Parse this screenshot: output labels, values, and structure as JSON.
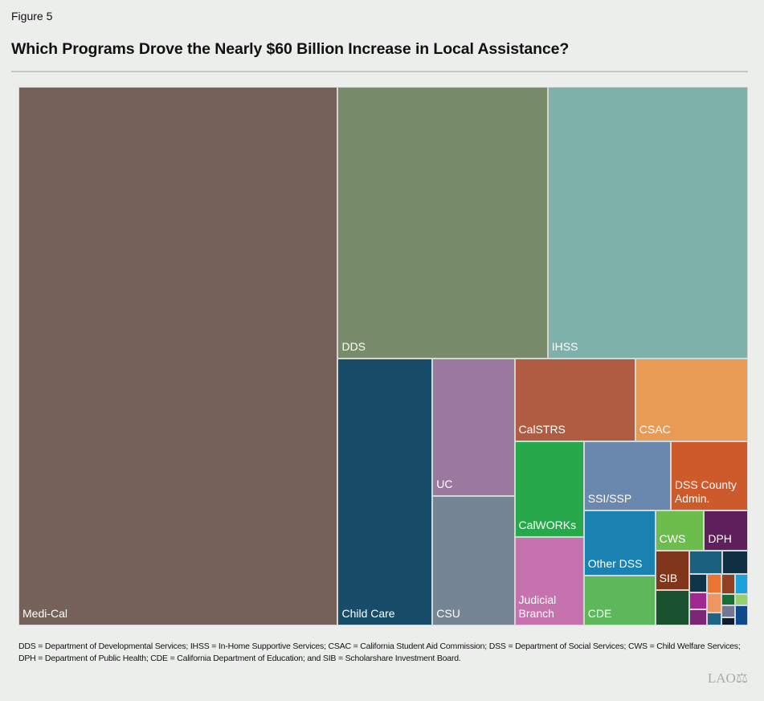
{
  "figure_label": "Figure 5",
  "title": "Which Programs Drove the Nearly $60 Billion Increase in Local Assistance?",
  "chart_data": {
    "type": "treemap",
    "title": "Which Programs Drove the Nearly $60 Billion Increase in Local Assistance?",
    "value_unit": "billions of dollars (estimated from area)",
    "items": [
      {
        "label": "Medi-Cal",
        "value": 25.9,
        "color": "#76615a"
      },
      {
        "label": "DDS",
        "value": 8.6,
        "color": "#788c6b"
      },
      {
        "label": "IHSS",
        "value": 8.2,
        "color": "#7db1a9"
      },
      {
        "label": "Child Care",
        "value": 3.8,
        "color": "#174d68"
      },
      {
        "label": "UC",
        "value": 1.7,
        "color": "#9b789e"
      },
      {
        "label": "CSU",
        "value": 1.6,
        "color": "#768593"
      },
      {
        "label": "CalSTRS",
        "value": 1.5,
        "color": "#b05c42"
      },
      {
        "label": "CSAC",
        "value": 1.4,
        "color": "#e89b55"
      },
      {
        "label": "CalWORKs",
        "value": 1.0,
        "color": "#27a84a"
      },
      {
        "label": "Judicial\nBranch",
        "value": 0.92,
        "color": "#c672ae"
      },
      {
        "label": "SSI/SSP",
        "value": 0.9,
        "color": "#6a87ad"
      },
      {
        "label": "DSS County\nAdmin.",
        "value": 0.8,
        "color": "#cc5a2a"
      },
      {
        "label": "Other DSS",
        "value": 0.7,
        "color": "#1a82b0"
      },
      {
        "label": "CDE",
        "value": 0.54,
        "color": "#5cb85a"
      },
      {
        "label": "CWS",
        "value": 0.3,
        "color": "#6cbd4b"
      },
      {
        "label": "DPH",
        "value": 0.27,
        "color": "#5e1f5a"
      },
      {
        "label": "SIB",
        "value": 0.2,
        "color": "#7f361b"
      },
      {
        "label": "",
        "value": 0.18,
        "color": "#1a5230"
      },
      {
        "label": "",
        "value": 0.115,
        "color": "#1a607f"
      },
      {
        "label": "",
        "value": 0.09,
        "color": "#0e3042"
      },
      {
        "label": "",
        "value": 0.049,
        "color": "#0e3548"
      },
      {
        "label": "",
        "value": 0.045,
        "color": "#a0298f"
      },
      {
        "label": "",
        "value": 0.043,
        "color": "#7d2673"
      },
      {
        "label": "",
        "value": 0.042,
        "color": "#ed7332"
      },
      {
        "label": "",
        "value": 0.042,
        "color": "#ef955f"
      },
      {
        "label": "",
        "value": 0.028,
        "color": "#1e6486"
      },
      {
        "label": "",
        "value": 0.041,
        "color": "#923f22"
      },
      {
        "label": "",
        "value": 0.039,
        "color": "#1ba1dc"
      },
      {
        "label": "",
        "value": 0.023,
        "color": "#166f36"
      },
      {
        "label": "",
        "value": 0.022,
        "color": "#97cf74"
      },
      {
        "label": "",
        "value": 0.025,
        "color": "#727894"
      },
      {
        "label": "",
        "value": 0.016,
        "color": "#0e1e30"
      },
      {
        "label": "",
        "value": 0.039,
        "color": "#0b4a8c"
      }
    ]
  },
  "footnote": "DDS = Department of Developmental Services; IHSS = In-Home Supportive Services; CSAC = California Student Aid Commission; DSS = Department of Social Services; CWS = Child Welfare Services; DPH = Department of Public Health; CDE = California Department of Education; and SIB =  Scholarshare Investment Board.",
  "logo_text": "LAO"
}
